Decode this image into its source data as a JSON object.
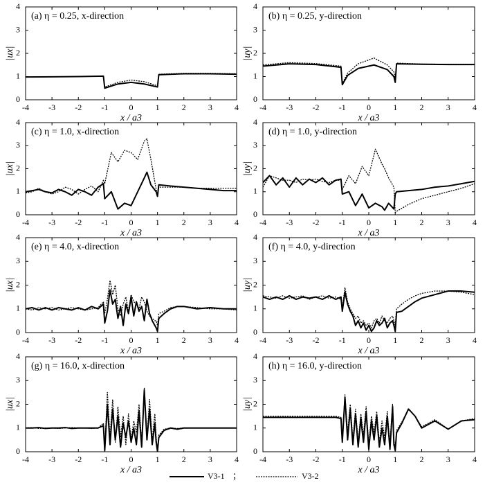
{
  "chart_data": [
    {
      "type": "line",
      "title": "(a) η = 0.25, x-direction",
      "xlabel": "x / a3",
      "ylabel": "|ux|",
      "x": [
        -4,
        -3,
        -2,
        -1.05,
        -1,
        -0.5,
        0,
        0.5,
        1,
        1.05,
        2,
        3,
        4
      ],
      "series": [
        {
          "name": "V3-1",
          "color": "#000000",
          "dash": "solid",
          "values": [
            0.98,
            0.99,
            1.0,
            1.02,
            0.5,
            0.68,
            0.75,
            0.68,
            0.55,
            1.08,
            1.12,
            1.12,
            1.1
          ]
        },
        {
          "name": "V3-2",
          "color": "#000000",
          "dash": "dotted",
          "values": [
            0.98,
            0.99,
            1.0,
            1.02,
            0.55,
            0.75,
            0.85,
            0.78,
            0.6,
            1.1,
            1.14,
            1.14,
            1.12
          ]
        }
      ],
      "xlim": [
        -4,
        4
      ],
      "ylim": [
        0,
        4
      ],
      "xticks": [
        -4,
        -3,
        -2,
        -1,
        0,
        1,
        2,
        3,
        4
      ],
      "yticks": [
        0,
        1,
        2,
        3,
        4
      ]
    },
    {
      "type": "line",
      "title": "(b) η = 0.25, y-direction",
      "xlabel": "x / a3",
      "ylabel": "|uy|",
      "x": [
        -4,
        -3,
        -2,
        -1.05,
        -1,
        -0.8,
        -0.4,
        0.2,
        0.7,
        0.95,
        1,
        1.05,
        2,
        3,
        4
      ],
      "series": [
        {
          "name": "V3-1",
          "color": "#000000",
          "dash": "solid",
          "values": [
            1.45,
            1.55,
            1.52,
            1.4,
            0.65,
            1.05,
            1.35,
            1.5,
            1.3,
            1.0,
            0.75,
            1.55,
            1.53,
            1.52,
            1.52
          ]
        },
        {
          "name": "V3-2",
          "color": "#000000",
          "dash": "dotted",
          "values": [
            1.5,
            1.6,
            1.56,
            1.45,
            0.7,
            1.15,
            1.55,
            1.8,
            1.5,
            1.2,
            0.9,
            1.58,
            1.54,
            1.53,
            1.53
          ]
        }
      ],
      "xlim": [
        -4,
        4
      ],
      "ylim": [
        0,
        4
      ],
      "xticks": [
        -4,
        -3,
        -2,
        -1,
        0,
        1,
        2,
        3,
        4
      ],
      "yticks": [
        0,
        1,
        2,
        3,
        4
      ]
    },
    {
      "type": "line",
      "title": "(c) η = 1.0, x-direction",
      "xlabel": "x / a3",
      "ylabel": "|ux|",
      "x": [
        -4,
        -3.75,
        -3.5,
        -3.25,
        -3,
        -2.75,
        -2.5,
        -2.25,
        -2,
        -1.75,
        -1.5,
        -1.25,
        -1.05,
        -1,
        -0.75,
        -0.5,
        -0.25,
        0,
        0.25,
        0.5,
        0.6,
        0.75,
        0.95,
        1,
        1.05,
        1.5,
        2,
        2.5,
        3,
        3.5,
        4
      ],
      "series": [
        {
          "name": "V3-1",
          "color": "#000000",
          "dash": "solid",
          "values": [
            1.0,
            1.05,
            1.1,
            1.0,
            0.95,
            1.1,
            1.0,
            0.85,
            1.1,
            1.0,
            0.85,
            1.2,
            1.35,
            0.7,
            1.0,
            0.25,
            0.5,
            0.4,
            1.0,
            1.6,
            1.85,
            1.3,
            1.0,
            0.8,
            1.3,
            1.25,
            1.2,
            1.15,
            1.1,
            1.05,
            1.05
          ]
        },
        {
          "name": "V3-2",
          "color": "#000000",
          "dash": "dotted",
          "values": [
            0.95,
            1.0,
            1.15,
            1.0,
            0.9,
            1.0,
            1.2,
            1.1,
            0.9,
            1.1,
            1.25,
            1.0,
            1.5,
            1.35,
            2.7,
            2.3,
            2.8,
            2.7,
            2.4,
            3.2,
            3.3,
            2.4,
            1.1,
            0.85,
            1.2,
            1.2,
            1.2,
            1.15,
            1.15,
            1.15,
            1.15
          ]
        }
      ],
      "xlim": [
        -4,
        4
      ],
      "ylim": [
        0,
        4
      ],
      "xticks": [
        -4,
        -3,
        -2,
        -1,
        0,
        1,
        2,
        3,
        4
      ],
      "yticks": [
        0,
        1,
        2,
        3,
        4
      ]
    },
    {
      "type": "line",
      "title": "(d) η = 1.0, y-direction",
      "xlabel": "x / a3",
      "ylabel": "|uy|",
      "x": [
        -4,
        -3.75,
        -3.5,
        -3.25,
        -3,
        -2.75,
        -2.5,
        -2.25,
        -2,
        -1.75,
        -1.5,
        -1.25,
        -1.05,
        -1,
        -0.75,
        -0.5,
        -0.25,
        0,
        0.25,
        0.5,
        0.6,
        0.75,
        0.95,
        1,
        1.05,
        1.5,
        2,
        2.5,
        3,
        3.5,
        4
      ],
      "series": [
        {
          "name": "V3-1",
          "color": "#000000",
          "dash": "solid",
          "values": [
            1.4,
            1.7,
            1.3,
            1.6,
            1.2,
            1.6,
            1.3,
            1.55,
            1.4,
            1.6,
            1.3,
            1.5,
            1.55,
            0.9,
            1.0,
            0.4,
            0.9,
            0.3,
            0.5,
            0.35,
            0.2,
            0.5,
            0.25,
            0.9,
            1.0,
            1.05,
            1.1,
            1.2,
            1.25,
            1.35,
            1.45
          ]
        },
        {
          "name": "V3-2",
          "color": "#000000",
          "dash": "dotted",
          "values": [
            1.2,
            1.7,
            1.6,
            1.5,
            1.5,
            1.4,
            1.55,
            1.5,
            1.55,
            1.45,
            1.4,
            1.5,
            1.5,
            1.1,
            1.7,
            1.35,
            2.1,
            1.7,
            2.85,
            2.2,
            2.0,
            1.6,
            1.2,
            0.1,
            0.15,
            0.45,
            0.7,
            0.85,
            1.0,
            1.15,
            1.35
          ]
        }
      ],
      "xlim": [
        -4,
        4
      ],
      "ylim": [
        0,
        4
      ],
      "xticks": [
        -4,
        -3,
        -2,
        -1,
        0,
        1,
        2,
        3,
        4
      ],
      "yticks": [
        0,
        1,
        2,
        3,
        4
      ]
    },
    {
      "type": "line",
      "title": "(e) η = 4.0, x-direction",
      "xlabel": "x / a3",
      "ylabel": "|ux|",
      "x": [
        -4,
        -3.75,
        -3.5,
        -3.25,
        -3,
        -2.75,
        -2.5,
        -2.25,
        -2,
        -1.75,
        -1.5,
        -1.25,
        -1.05,
        -1,
        -0.9,
        -0.8,
        -0.7,
        -0.6,
        -0.5,
        -0.4,
        -0.3,
        -0.2,
        -0.1,
        0,
        0.1,
        0.2,
        0.3,
        0.4,
        0.5,
        0.6,
        0.7,
        0.8,
        0.9,
        0.95,
        1,
        1.05,
        1.25,
        1.5,
        1.75,
        2,
        2.5,
        3,
        3.5,
        4
      ],
      "series": [
        {
          "name": "V3-1",
          "color": "#000000",
          "dash": "solid",
          "values": [
            1.0,
            1.05,
            0.95,
            1.05,
            0.95,
            1.05,
            1.0,
            0.95,
            1.05,
            0.95,
            1.1,
            1.0,
            1.2,
            0.4,
            0.9,
            1.8,
            1.2,
            1.4,
            0.6,
            1.1,
            0.3,
            1.2,
            0.8,
            1.5,
            0.7,
            1.3,
            0.9,
            1.1,
            0.5,
            1.4,
            0.8,
            0.5,
            0.3,
            0.2,
            0.05,
            0.6,
            0.8,
            1.0,
            1.1,
            1.1,
            1.0,
            1.05,
            1.0,
            1.0
          ]
        },
        {
          "name": "V3-2",
          "color": "#000000",
          "dash": "dotted",
          "values": [
            1.0,
            0.95,
            1.05,
            1.0,
            1.05,
            0.95,
            1.0,
            1.05,
            1.0,
            0.95,
            1.0,
            1.05,
            1.3,
            0.8,
            1.4,
            2.2,
            1.6,
            2.0,
            1.0,
            0.7,
            1.2,
            1.5,
            0.9,
            1.6,
            1.3,
            1.2,
            1.0,
            1.5,
            1.3,
            0.9,
            0.7,
            0.6,
            0.5,
            0.5,
            0.3,
            0.8,
            0.9,
            1.05,
            1.1,
            1.1,
            1.05,
            1.0,
            1.0,
            0.95
          ]
        }
      ],
      "xlim": [
        -4,
        4
      ],
      "ylim": [
        0,
        4
      ],
      "xticks": [
        -4,
        -3,
        -2,
        -1,
        0,
        1,
        2,
        3,
        4
      ],
      "yticks": [
        0,
        1,
        2,
        3,
        4
      ]
    },
    {
      "type": "line",
      "title": "(f) η = 4.0, y-direction",
      "xlabel": "x / a3",
      "ylabel": "|uy|",
      "x": [
        -4,
        -3.75,
        -3.5,
        -3.25,
        -3,
        -2.75,
        -2.5,
        -2.25,
        -2,
        -1.75,
        -1.5,
        -1.25,
        -1.05,
        -1,
        -0.9,
        -0.8,
        -0.7,
        -0.6,
        -0.5,
        -0.4,
        -0.3,
        -0.2,
        -0.1,
        0,
        0.1,
        0.2,
        0.3,
        0.4,
        0.5,
        0.6,
        0.7,
        0.8,
        0.9,
        0.95,
        1,
        1.05,
        1.25,
        1.5,
        1.75,
        2,
        2.5,
        3,
        3.5,
        4
      ],
      "series": [
        {
          "name": "V3-1",
          "color": "#000000",
          "dash": "solid",
          "values": [
            1.5,
            1.4,
            1.5,
            1.4,
            1.55,
            1.4,
            1.5,
            1.45,
            1.5,
            1.4,
            1.55,
            1.4,
            1.5,
            0.9,
            1.7,
            1.2,
            0.9,
            0.7,
            0.3,
            0.5,
            0.2,
            0.4,
            0.1,
            0.3,
            0.05,
            0.2,
            0.5,
            0.3,
            0.4,
            0.6,
            0.2,
            0.4,
            0.5,
            0.3,
            0.05,
            0.85,
            0.9,
            1.1,
            1.3,
            1.45,
            1.6,
            1.75,
            1.75,
            1.7
          ]
        },
        {
          "name": "V3-2",
          "color": "#000000",
          "dash": "dotted",
          "values": [
            1.55,
            1.5,
            1.45,
            1.55,
            1.45,
            1.5,
            1.55,
            1.4,
            1.5,
            1.55,
            1.45,
            1.5,
            1.4,
            1.0,
            1.9,
            1.3,
            1.0,
            0.8,
            0.6,
            0.7,
            0.4,
            0.5,
            0.3,
            0.4,
            0.2,
            0.5,
            0.6,
            0.4,
            0.7,
            0.5,
            0.4,
            0.6,
            0.7,
            0.5,
            0.3,
            1.0,
            1.2,
            1.4,
            1.55,
            1.65,
            1.75,
            1.75,
            1.7,
            1.6
          ]
        }
      ],
      "xlim": [
        -4,
        4
      ],
      "ylim": [
        0,
        4
      ],
      "xticks": [
        -4,
        -3,
        -2,
        -1,
        0,
        1,
        2,
        3,
        4
      ],
      "yticks": [
        0,
        1,
        2,
        3,
        4
      ]
    },
    {
      "type": "line",
      "title": "(g) η = 16.0, x-direction",
      "xlabel": "x / a3",
      "ylabel": "|ux|",
      "x": [
        -4,
        -3.75,
        -3.5,
        -3.25,
        -3,
        -2.75,
        -2.5,
        -2.25,
        -2,
        -1.75,
        -1.5,
        -1.25,
        -1.05,
        -1,
        -0.9,
        -0.8,
        -0.7,
        -0.6,
        -0.5,
        -0.4,
        -0.3,
        -0.2,
        -0.1,
        0,
        0.1,
        0.2,
        0.3,
        0.4,
        0.5,
        0.6,
        0.7,
        0.8,
        0.9,
        0.95,
        1,
        1.05,
        1.25,
        1.5,
        1.75,
        2,
        2.5,
        3,
        3.5,
        4
      ],
      "series": [
        {
          "name": "V3-1",
          "color": "#000000",
          "dash": "solid",
          "values": [
            1.0,
            1.0,
            1.02,
            0.98,
            1.0,
            1.0,
            1.02,
            0.98,
            1.0,
            1.0,
            1.0,
            1.0,
            1.1,
            0.05,
            2.0,
            0.3,
            1.8,
            0.5,
            1.5,
            0.2,
            1.2,
            0.6,
            1.3,
            0.4,
            1.0,
            0.3,
            1.7,
            0.2,
            2.6,
            0.5,
            1.8,
            0.3,
            1.2,
            0.4,
            0.02,
            0.6,
            0.9,
            1.0,
            0.95,
            1.0,
            1.0,
            1.0,
            1.0,
            1.0
          ]
        },
        {
          "name": "V3-2",
          "color": "#000000",
          "dash": "dotted",
          "values": [
            1.0,
            1.02,
            0.98,
            1.0,
            1.0,
            0.98,
            1.0,
            1.02,
            1.0,
            1.0,
            0.98,
            1.0,
            1.2,
            0.1,
            2.5,
            0.6,
            2.2,
            0.4,
            1.9,
            0.6,
            1.5,
            0.3,
            1.6,
            0.5,
            1.3,
            0.8,
            2.0,
            0.4,
            2.7,
            0.6,
            2.2,
            0.5,
            1.6,
            0.6,
            0.05,
            0.7,
            0.95,
            1.0,
            0.98,
            1.0,
            1.0,
            1.0,
            1.0,
            1.0
          ]
        }
      ],
      "xlim": [
        -4,
        4
      ],
      "ylim": [
        0,
        4
      ],
      "xticks": [
        -4,
        -3,
        -2,
        -1,
        0,
        1,
        2,
        3,
        4
      ],
      "yticks": [
        0,
        1,
        2,
        3,
        4
      ]
    },
    {
      "type": "line",
      "title": "(h) η = 16.0, y-direction",
      "xlabel": "x / a3",
      "ylabel": "|uy|",
      "x": [
        -4,
        -3.75,
        -3.5,
        -3.25,
        -3,
        -2.75,
        -2.5,
        -2.25,
        -2,
        -1.75,
        -1.5,
        -1.25,
        -1.05,
        -1,
        -0.9,
        -0.8,
        -0.7,
        -0.6,
        -0.5,
        -0.4,
        -0.3,
        -0.2,
        -0.1,
        0,
        0.1,
        0.2,
        0.3,
        0.4,
        0.5,
        0.6,
        0.7,
        0.8,
        0.9,
        0.95,
        1,
        1.05,
        1.25,
        1.5,
        1.75,
        2,
        2.5,
        3,
        3.5,
        4
      ],
      "series": [
        {
          "name": "V3-1",
          "color": "#000000",
          "dash": "solid",
          "values": [
            1.45,
            1.45,
            1.45,
            1.45,
            1.45,
            1.45,
            1.45,
            1.45,
            1.45,
            1.45,
            1.45,
            1.45,
            1.4,
            0.4,
            2.3,
            0.5,
            1.8,
            0.3,
            1.6,
            0.2,
            1.4,
            0.4,
            1.7,
            0.1,
            1.3,
            0.5,
            1.5,
            0.2,
            1.0,
            0.3,
            1.5,
            0.1,
            1.9,
            0.3,
            0.05,
            0.8,
            1.2,
            1.8,
            1.5,
            1.0,
            1.3,
            0.95,
            1.3,
            1.35
          ]
        },
        {
          "name": "V3-2",
          "color": "#000000",
          "dash": "dotted",
          "values": [
            1.5,
            1.5,
            1.5,
            1.5,
            1.5,
            1.5,
            1.5,
            1.5,
            1.5,
            1.5,
            1.5,
            1.5,
            1.45,
            0.5,
            2.4,
            0.8,
            2.0,
            0.5,
            1.8,
            0.4,
            1.6,
            0.7,
            1.9,
            0.3,
            1.5,
            0.8,
            1.7,
            0.4,
            1.3,
            0.6,
            1.7,
            0.3,
            2.0,
            0.5,
            0.1,
            0.9,
            1.25,
            1.8,
            1.5,
            1.05,
            1.35,
            0.95,
            1.3,
            1.4
          ]
        }
      ],
      "xlim": [
        -4,
        4
      ],
      "ylim": [
        0,
        4
      ],
      "xticks": [
        -4,
        -3,
        -2,
        -1,
        0,
        1,
        2,
        3,
        4
      ],
      "yticks": [
        0,
        1,
        2,
        3,
        4
      ]
    }
  ],
  "legend_separator": "；"
}
